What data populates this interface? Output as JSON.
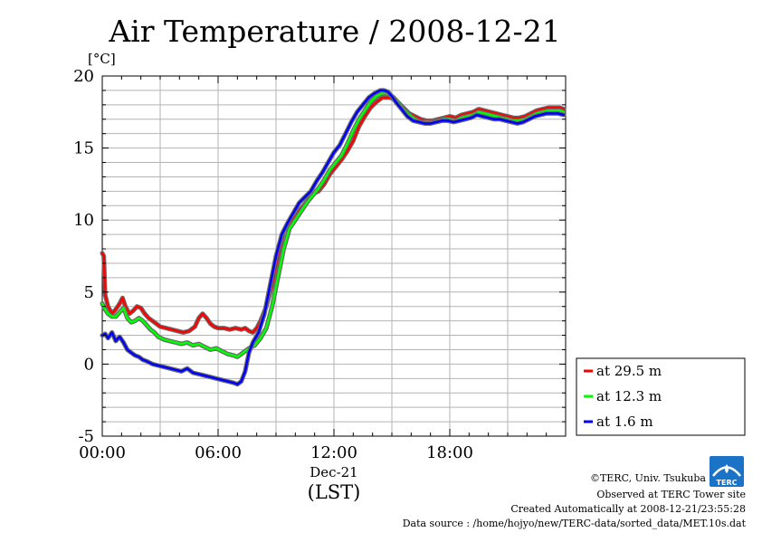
{
  "chart_data": {
    "type": "line",
    "title": "Air Temperature / 2008-12-21",
    "yunit": "[°C]",
    "xlabel_date": "Dec-21",
    "xlabel": "(LST)",
    "ylim": [
      -5,
      20
    ],
    "xlim": [
      0,
      24
    ],
    "yticks": [
      -5,
      0,
      5,
      10,
      15,
      20
    ],
    "xticks": [
      {
        "value": 0,
        "label": "00:00"
      },
      {
        "value": 6,
        "label": "06:00"
      },
      {
        "value": 12,
        "label": "12:00"
      },
      {
        "value": 18,
        "label": "18:00"
      }
    ],
    "grid": true,
    "legend_position": "right",
    "series": [
      {
        "name": "at 29.5 m",
        "color": "#ff0000",
        "x": [
          0.0,
          0.08,
          0.15,
          0.3,
          0.5,
          0.7,
          0.9,
          1.05,
          1.2,
          1.4,
          1.6,
          1.8,
          2.0,
          2.2,
          2.4,
          2.6,
          2.8,
          3.0,
          3.3,
          3.6,
          3.9,
          4.2,
          4.5,
          4.8,
          5.0,
          5.2,
          5.4,
          5.6,
          5.8,
          6.0,
          6.3,
          6.6,
          6.9,
          7.2,
          7.4,
          7.6,
          7.8,
          8.0,
          8.2,
          8.5,
          8.8,
          9.1,
          9.4,
          9.7,
          10.0,
          10.3,
          10.6,
          10.9,
          11.2,
          11.5,
          11.8,
          12.1,
          12.4,
          12.7,
          13.0,
          13.3,
          13.6,
          13.9,
          14.2,
          14.5,
          14.7,
          14.9,
          15.1,
          15.3,
          15.6,
          15.9,
          16.2,
          16.5,
          16.8,
          17.1,
          17.4,
          17.7,
          18.0,
          18.3,
          18.6,
          18.9,
          19.2,
          19.5,
          19.8,
          20.1,
          20.4,
          20.7,
          21.0,
          21.3,
          21.6,
          21.9,
          22.2,
          22.5,
          22.8,
          23.1,
          23.4,
          23.7,
          23.9
        ],
        "y": [
          7.7,
          7.5,
          4.8,
          4.0,
          3.5,
          3.8,
          4.2,
          4.6,
          4.0,
          3.5,
          3.7,
          4.0,
          3.9,
          3.5,
          3.2,
          3.0,
          2.8,
          2.6,
          2.5,
          2.4,
          2.3,
          2.2,
          2.3,
          2.6,
          3.2,
          3.5,
          3.2,
          2.8,
          2.6,
          2.5,
          2.5,
          2.4,
          2.5,
          2.4,
          2.5,
          2.3,
          2.2,
          2.5,
          3.0,
          4.0,
          5.5,
          7.5,
          9.2,
          9.8,
          10.2,
          10.8,
          11.3,
          11.8,
          12.0,
          12.5,
          13.2,
          13.7,
          14.2,
          14.8,
          15.5,
          16.5,
          17.2,
          17.8,
          18.2,
          18.5,
          18.5,
          18.5,
          18.4,
          18.2,
          17.8,
          17.4,
          17.2,
          17.0,
          16.9,
          16.9,
          17.0,
          17.1,
          17.2,
          17.1,
          17.3,
          17.4,
          17.5,
          17.7,
          17.6,
          17.5,
          17.4,
          17.3,
          17.2,
          17.1,
          17.1,
          17.2,
          17.4,
          17.6,
          17.7,
          17.8,
          17.8,
          17.8,
          17.7
        ]
      },
      {
        "name": "at 12.3 m",
        "color": "#00ff00",
        "x": [
          0.0,
          0.1,
          0.3,
          0.5,
          0.7,
          0.9,
          1.1,
          1.3,
          1.5,
          1.7,
          1.9,
          2.1,
          2.3,
          2.5,
          2.7,
          2.9,
          3.2,
          3.5,
          3.8,
          4.1,
          4.4,
          4.7,
          5.0,
          5.3,
          5.6,
          5.9,
          6.2,
          6.5,
          6.8,
          7.0,
          7.3,
          7.6,
          7.9,
          8.2,
          8.5,
          8.8,
          9.1,
          9.4,
          9.7,
          10.0,
          10.3,
          10.6,
          10.9,
          11.2,
          11.5,
          11.8,
          12.1,
          12.4,
          12.7,
          13.0,
          13.3,
          13.6,
          13.9,
          14.2,
          14.5,
          14.7,
          14.9,
          15.1,
          15.3,
          15.6,
          15.9,
          16.2,
          16.5,
          16.8,
          17.1,
          17.4,
          17.7,
          18.0,
          18.3,
          18.6,
          18.9,
          19.2,
          19.5,
          19.8,
          20.1,
          20.4,
          20.7,
          21.0,
          21.3,
          21.6,
          21.9,
          22.2,
          22.5,
          22.8,
          23.1,
          23.4,
          23.7,
          23.9
        ],
        "y": [
          4.2,
          3.9,
          3.5,
          3.3,
          3.3,
          3.6,
          3.9,
          3.2,
          2.9,
          3.0,
          3.2,
          3.0,
          2.7,
          2.4,
          2.2,
          1.9,
          1.7,
          1.6,
          1.5,
          1.4,
          1.5,
          1.3,
          1.4,
          1.2,
          1.0,
          1.1,
          0.9,
          0.7,
          0.6,
          0.5,
          0.8,
          1.1,
          1.3,
          1.8,
          2.5,
          4.0,
          6.0,
          8.0,
          9.4,
          10.0,
          10.6,
          11.2,
          11.7,
          12.2,
          12.8,
          13.5,
          14.0,
          14.5,
          15.3,
          16.2,
          17.0,
          17.6,
          18.2,
          18.6,
          18.8,
          18.8,
          18.7,
          18.5,
          18.2,
          17.7,
          17.3,
          17.0,
          16.8,
          16.8,
          16.8,
          16.9,
          17.0,
          17.0,
          16.9,
          17.1,
          17.2,
          17.3,
          17.5,
          17.4,
          17.3,
          17.2,
          17.1,
          17.0,
          16.9,
          16.9,
          17.0,
          17.2,
          17.4,
          17.5,
          17.6,
          17.6,
          17.6,
          17.5
        ]
      },
      {
        "name": "at 1.6 m",
        "color": "#0000ff",
        "x": [
          0.0,
          0.15,
          0.3,
          0.5,
          0.7,
          0.9,
          1.1,
          1.3,
          1.5,
          1.7,
          1.9,
          2.1,
          2.3,
          2.6,
          2.9,
          3.2,
          3.5,
          3.8,
          4.1,
          4.4,
          4.7,
          5.0,
          5.3,
          5.6,
          5.9,
          6.2,
          6.5,
          6.8,
          7.0,
          7.2,
          7.4,
          7.6,
          7.8,
          8.1,
          8.4,
          8.7,
          9.0,
          9.3,
          9.6,
          9.9,
          10.2,
          10.5,
          10.8,
          11.1,
          11.4,
          11.7,
          12.0,
          12.3,
          12.6,
          12.9,
          13.2,
          13.5,
          13.8,
          14.1,
          14.4,
          14.6,
          14.8,
          15.0,
          15.2,
          15.5,
          15.8,
          16.1,
          16.4,
          16.7,
          17.0,
          17.3,
          17.6,
          17.9,
          18.2,
          18.5,
          18.8,
          19.1,
          19.4,
          19.7,
          20.0,
          20.3,
          20.6,
          20.9,
          21.2,
          21.5,
          21.8,
          22.1,
          22.4,
          22.7,
          23.0,
          23.3,
          23.6,
          23.9
        ],
        "y": [
          2.0,
          2.1,
          1.8,
          2.2,
          1.6,
          1.9,
          1.5,
          1.0,
          0.8,
          0.6,
          0.5,
          0.3,
          0.2,
          0.0,
          -0.1,
          -0.2,
          -0.3,
          -0.4,
          -0.5,
          -0.3,
          -0.6,
          -0.7,
          -0.8,
          -0.9,
          -1.0,
          -1.1,
          -1.2,
          -1.3,
          -1.4,
          -1.2,
          -0.5,
          0.8,
          1.5,
          2.2,
          3.5,
          5.5,
          7.5,
          9.0,
          9.8,
          10.5,
          11.2,
          11.6,
          12.0,
          12.7,
          13.3,
          14.0,
          14.7,
          15.2,
          16.0,
          16.8,
          17.5,
          18.0,
          18.5,
          18.8,
          19.0,
          19.0,
          18.9,
          18.6,
          18.2,
          17.7,
          17.2,
          16.9,
          16.8,
          16.7,
          16.7,
          16.8,
          16.9,
          16.9,
          16.8,
          16.9,
          17.0,
          17.1,
          17.3,
          17.2,
          17.1,
          17.0,
          17.0,
          16.9,
          16.8,
          16.7,
          16.8,
          17.0,
          17.2,
          17.3,
          17.4,
          17.4,
          17.4,
          17.3
        ]
      }
    ]
  },
  "footer": {
    "credit": "©TERC, Univ. Tsukuba",
    "observed": "Observed at TERC Tower site",
    "created": "Created Automatically at 2008-12-21/23:55:28",
    "source": "Data source : /home/hojyo/new/TERC-data/sorted_data/MET.10s.dat"
  },
  "logo": {
    "text": "TERC",
    "color": "#1a73c7"
  }
}
